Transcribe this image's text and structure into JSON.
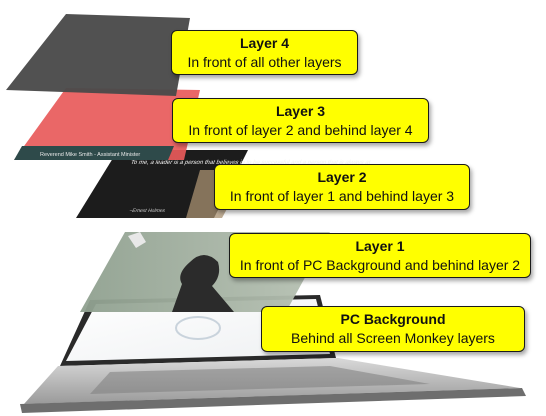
{
  "layers": [
    {
      "title": "Layer 4",
      "description": "In front of all other layers"
    },
    {
      "title": "Layer 3",
      "description": "In front of layer 2 and behind layer 4"
    },
    {
      "title": "Layer 2",
      "description": "In front of layer 1 and behind layer 3"
    },
    {
      "title": "Layer 1",
      "description": "In front of PC Background and behind layer 2"
    },
    {
      "title": "PC Background",
      "description": "Behind all Screen Monkey layers"
    }
  ],
  "layer_colors": {
    "layer4": "#4a4a4a",
    "layer3": "#e85a5a",
    "layer2": "#1c1c1c",
    "layer1": "#9aaa9a",
    "callout_fill": "#ffff00"
  },
  "slide_text": {
    "banner_line1": "Reverend Mike Smith - Assistant Minister",
    "quote": "To me, a leader is a person that believes in to be successful and a person that is always at",
    "attribution": "~Ernest Holmes"
  }
}
